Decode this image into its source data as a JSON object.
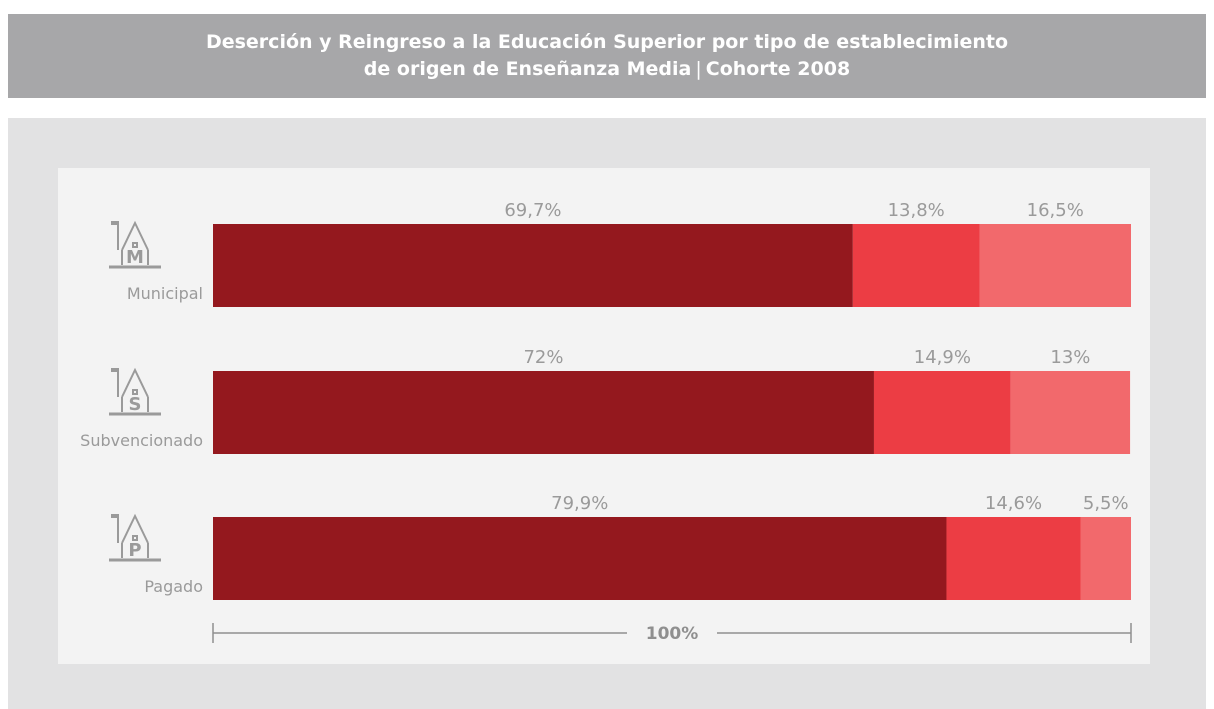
{
  "header": {
    "title_line1": "Deserción y Reingreso a la Educación Superior por tipo de establecimiento",
    "title_line2_main": "de origen de Enseñanza Media",
    "title_sep": "|",
    "title_line2_end": "Cohorte 2008"
  },
  "chart_data": {
    "type": "bar",
    "orientation": "horizontal",
    "stacked": true,
    "normalized": true,
    "categories": [
      "Municipal",
      "Subvencionado",
      "Pagado"
    ],
    "category_icons": [
      {
        "name": "school-municipal-icon",
        "letter": "M"
      },
      {
        "name": "school-subvencionado-icon",
        "letter": "S"
      },
      {
        "name": "school-pagado-icon",
        "letter": "P"
      }
    ],
    "series": [
      {
        "values": [
          69.7,
          72,
          79.9
        ],
        "labels": [
          "69,7%",
          "72%",
          "79,9%"
        ],
        "color": "#94181e"
      },
      {
        "values": [
          13.8,
          14.9,
          14.6
        ],
        "labels": [
          "13,8%",
          "14,9%",
          "14,6%"
        ],
        "color": "#ec3d44"
      },
      {
        "values": [
          16.5,
          13,
          5.5
        ],
        "labels": [
          "16,5%",
          "13%",
          "5,5%"
        ],
        "color": "#f2696c"
      }
    ],
    "total_label": "100%",
    "xlim": [
      0,
      100
    ]
  }
}
